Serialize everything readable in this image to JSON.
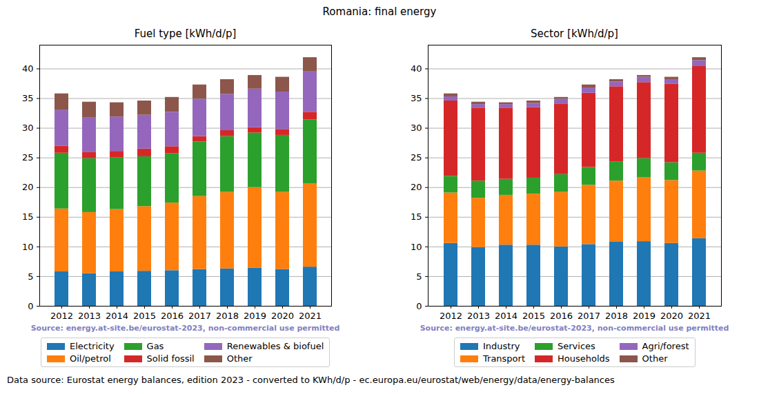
{
  "title": "Romania: final energy",
  "caption": "Data source: Eurostat energy balances, edition 2023 - converted to KWh/d/p - ec.europa.eu/eurostat/web/energy/data/energy-balances",
  "chart_data": [
    {
      "type": "bar",
      "title": "Fuel type [kWh/d/p]",
      "stacked": true,
      "grid": true,
      "legend": "bottom",
      "annotation": "Source: energy.at-site.be/eurostat-2023, non-commercial use permitted",
      "categories": [
        "2012",
        "2013",
        "2014",
        "2015",
        "2016",
        "2017",
        "2018",
        "2019",
        "2020",
        "2021"
      ],
      "ylim": [
        0,
        44
      ],
      "yticks": [
        0,
        5,
        10,
        15,
        20,
        25,
        30,
        35,
        40
      ],
      "series": [
        {
          "name": "Electricity",
          "color": "#1f77b4",
          "values": [
            5.8,
            5.5,
            5.8,
            5.9,
            6.0,
            6.2,
            6.3,
            6.4,
            6.2,
            6.6
          ]
        },
        {
          "name": "Oil/petrol",
          "color": "#ff7f0e",
          "values": [
            10.6,
            10.3,
            10.5,
            10.9,
            11.4,
            12.3,
            12.9,
            13.6,
            13.0,
            14.0
          ]
        },
        {
          "name": "Gas",
          "color": "#2ca02c",
          "values": [
            9.4,
            9.1,
            8.7,
            8.4,
            8.3,
            9.2,
            9.4,
            9.2,
            9.6,
            10.8
          ]
        },
        {
          "name": "Solid fossil",
          "color": "#d62728",
          "values": [
            1.2,
            1.0,
            1.1,
            1.3,
            1.2,
            0.9,
            1.0,
            0.9,
            1.0,
            1.3
          ]
        },
        {
          "name": "Renewables & biofuel",
          "color": "#9467bd",
          "values": [
            6.0,
            5.9,
            5.8,
            5.7,
            5.8,
            6.3,
            6.1,
            6.5,
            6.3,
            6.8
          ]
        },
        {
          "name": "Other",
          "color": "#8c564b",
          "values": [
            2.8,
            2.6,
            2.4,
            2.4,
            2.5,
            2.4,
            2.5,
            2.3,
            2.5,
            2.4
          ]
        }
      ]
    },
    {
      "type": "bar",
      "title": "Sector [kWh/d/p]",
      "stacked": true,
      "grid": true,
      "legend": "bottom",
      "annotation": "Source: energy.at-site.be/eurostat-2023, non-commercial use permitted",
      "categories": [
        "2012",
        "2013",
        "2014",
        "2015",
        "2016",
        "2017",
        "2018",
        "2019",
        "2020",
        "2021"
      ],
      "ylim": [
        0,
        44
      ],
      "yticks": [
        0,
        5,
        10,
        15,
        20,
        25,
        30,
        35,
        40
      ],
      "series": [
        {
          "name": "Industry",
          "color": "#1f77b4",
          "values": [
            10.6,
            9.9,
            10.3,
            10.3,
            10.0,
            10.4,
            10.8,
            10.9,
            10.6,
            11.4
          ]
        },
        {
          "name": "Transport",
          "color": "#ff7f0e",
          "values": [
            8.5,
            8.3,
            8.4,
            8.6,
            9.2,
            10.0,
            10.3,
            10.8,
            10.6,
            11.4
          ]
        },
        {
          "name": "Services",
          "color": "#2ca02c",
          "values": [
            2.8,
            2.9,
            2.7,
            2.7,
            3.0,
            3.0,
            3.2,
            3.2,
            3.0,
            3.0
          ]
        },
        {
          "name": "Households",
          "color": "#d62728",
          "values": [
            12.7,
            12.3,
            12.0,
            11.9,
            11.9,
            12.5,
            12.7,
            12.8,
            13.2,
            14.6
          ]
        },
        {
          "name": "Agri/forest",
          "color": "#9467bd",
          "values": [
            0.7,
            0.6,
            0.6,
            0.7,
            0.8,
            0.9,
            0.8,
            0.9,
            0.8,
            1.0
          ]
        },
        {
          "name": "Other",
          "color": "#8c564b",
          "values": [
            0.5,
            0.4,
            0.3,
            0.4,
            0.3,
            0.5,
            0.4,
            0.3,
            0.4,
            0.5
          ]
        }
      ]
    }
  ]
}
